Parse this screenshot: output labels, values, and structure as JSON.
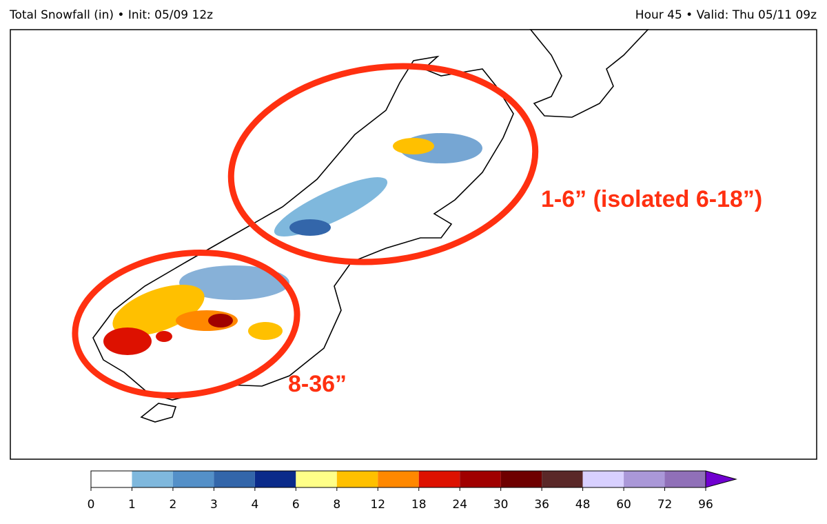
{
  "header": {
    "left": "Total Snowfall (in) • Init: 05/09 12z",
    "right": "Hour 45 • Valid: Thu 05/11 09z"
  },
  "annotations": [
    "1-6” (isolated 6-18”)",
    "8-36”"
  ],
  "colorbar": {
    "ticks": [
      0,
      1,
      2,
      3,
      4,
      6,
      8,
      12,
      18,
      24,
      30,
      36,
      48,
      60,
      72,
      96
    ],
    "colors": [
      "#ffffff",
      "#7fb8dd",
      "#5490c8",
      "#3366aa",
      "#0a2a8a",
      "#ffff88",
      "#ffc000",
      "#ff8800",
      "#dd1100",
      "#a00000",
      "#6e0000",
      "#5a2828",
      "#d8d0ff",
      "#aa98d8",
      "#9070b8"
    ],
    "extend_color": "#7000d0"
  }
}
